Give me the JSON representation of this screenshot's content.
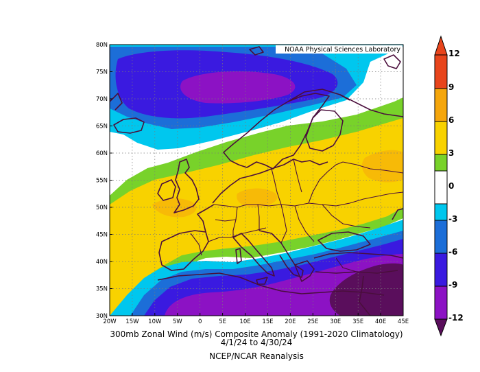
{
  "credit": "NOAA Physical Sciences Laboratory",
  "caption": {
    "line1": "300mb Zonal Wind (m/s) Composite Anomaly (1991-2020 Climatology)",
    "line2": "4/1/24  to 4/30/24",
    "line3": "NCEP/NCAR Reanalysis"
  },
  "lat_labels": [
    "80N",
    "75N",
    "70N",
    "65N",
    "60N",
    "55N",
    "50N",
    "45N",
    "40N",
    "35N",
    "30N"
  ],
  "lon_labels": [
    "20W",
    "15W",
    "10W",
    "5W",
    "0",
    "5E",
    "10E",
    "15E",
    "20E",
    "25E",
    "30E",
    "35E",
    "40E",
    "45E"
  ],
  "colorbar": {
    "labels": [
      "12",
      "9",
      "6",
      "3",
      "0",
      "-3",
      "-6",
      "-9",
      "-12"
    ],
    "bins": [
      {
        "range": "9 to 12",
        "color": "#e8451c"
      },
      {
        "range": "6 to 9",
        "color": "#f5a60c"
      },
      {
        "range": "3 to 6",
        "color": "#f8d200"
      },
      {
        "range": "1.5 to 3",
        "color": "#78d22a"
      },
      {
        "range": "-1.5 to 1.5",
        "color": "#ffffff"
      },
      {
        "range": "-3 to -1.5",
        "color": "#00c7ee"
      },
      {
        "range": "-6 to -3",
        "color": "#1c6ed8"
      },
      {
        "range": "-9 to -6",
        "color": "#3a1ae0"
      },
      {
        "range": "-12 to -9",
        "color": "#8c12c4"
      },
      {
        "range": "< -12",
        "color": "#5a0e5c"
      }
    ]
  },
  "colors": {
    "neg_lightblue": "#00c7ee",
    "neg_blue": "#1c6ed8",
    "neg_indigo": "#3a1ae0",
    "neg_violet": "#8c12c4",
    "neg_darkpurple": "#5a0e5c",
    "pos_green": "#78d22a",
    "pos_yellow": "#f8d200",
    "pos_orange": "#f5a60c",
    "pos_red": "#e8451c",
    "coastline": "#4a0e3c"
  }
}
